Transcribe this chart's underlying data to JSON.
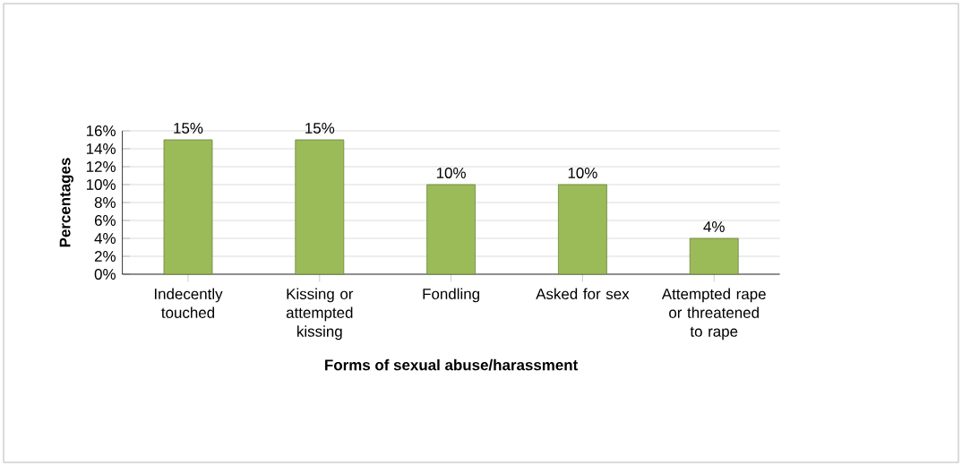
{
  "chart_data": {
    "type": "bar",
    "xlabel": "Forms of sexual abuse/harassment",
    "ylabel": "Percentages",
    "categories": [
      "Indecently touched",
      "Kissing or attempted kissing",
      "Fondling",
      "Asked for sex",
      "Attempted rape or threatened to rape"
    ],
    "values": [
      15,
      15,
      10,
      10,
      4
    ],
    "value_labels": [
      "15%",
      "15%",
      "10%",
      "10%",
      "4%"
    ],
    "color": "#9bbb59",
    "ylim": [
      0,
      16
    ],
    "yticks": [
      {
        "value": 0,
        "label": "0%"
      },
      {
        "value": 2,
        "label": "2%"
      },
      {
        "value": 4,
        "label": "4%"
      },
      {
        "value": 6,
        "label": "6%"
      },
      {
        "value": 8,
        "label": "8%"
      },
      {
        "value": 10,
        "label": "10%"
      },
      {
        "value": 12,
        "label": "12%"
      },
      {
        "value": 14,
        "label": "14%"
      },
      {
        "value": 16,
        "label": "16%"
      }
    ],
    "grid": "y"
  }
}
